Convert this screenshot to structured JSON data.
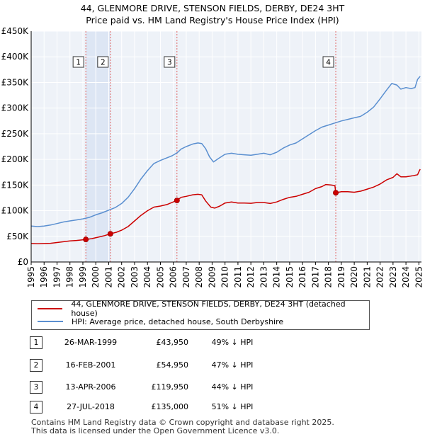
{
  "title_line1": "44, GLENMORE DRIVE, STENSON FIELDS, DERBY, DE24 3HT",
  "title_line2": "Price paid vs. HM Land Registry's House Price Index (HPI)",
  "chart_data": {
    "type": "line",
    "x_range": [
      1995,
      2025.2
    ],
    "ylim": [
      0,
      450000
    ],
    "y_ticks": [
      0,
      50000,
      100000,
      150000,
      200000,
      250000,
      300000,
      350000,
      400000,
      450000
    ],
    "y_tick_labels": [
      "£0",
      "£50K",
      "£100K",
      "£150K",
      "£200K",
      "£250K",
      "£300K",
      "£350K",
      "£400K",
      "£450K"
    ],
    "x_ticks": [
      1995,
      1996,
      1997,
      1998,
      1999,
      2000,
      2001,
      2002,
      2003,
      2004,
      2005,
      2006,
      2007,
      2008,
      2009,
      2010,
      2011,
      2012,
      2013,
      2014,
      2015,
      2016,
      2017,
      2018,
      2019,
      2020,
      2021,
      2022,
      2023,
      2024,
      2025
    ],
    "series": [
      {
        "name": "44, GLENMORE DRIVE, STENSON FIELDS, DERBY, DE24 3HT (detached house)",
        "color": "#cc0000",
        "points": [
          [
            1995.0,
            36000
          ],
          [
            1995.5,
            35500
          ],
          [
            1996.0,
            36000
          ],
          [
            1996.5,
            36500
          ],
          [
            1997.0,
            38000
          ],
          [
            1997.5,
            39500
          ],
          [
            1998.0,
            41000
          ],
          [
            1998.5,
            42000
          ],
          [
            1999.23,
            43950
          ],
          [
            1999.7,
            45500
          ],
          [
            2000.2,
            48500
          ],
          [
            2000.7,
            51500
          ],
          [
            2001.13,
            54950
          ],
          [
            2001.6,
            58000
          ],
          [
            2002.0,
            62000
          ],
          [
            2002.5,
            69000
          ],
          [
            2003.0,
            80000
          ],
          [
            2003.5,
            91000
          ],
          [
            2004.0,
            100000
          ],
          [
            2004.5,
            107000
          ],
          [
            2005.0,
            109000
          ],
          [
            2005.5,
            112000
          ],
          [
            2006.28,
            119950
          ],
          [
            2006.6,
            126000
          ],
          [
            2007.0,
            128000
          ],
          [
            2007.5,
            131000
          ],
          [
            2007.9,
            132000
          ],
          [
            2008.2,
            131000
          ],
          [
            2008.5,
            119000
          ],
          [
            2008.9,
            107000
          ],
          [
            2009.2,
            105000
          ],
          [
            2009.6,
            109000
          ],
          [
            2010.0,
            115000
          ],
          [
            2010.5,
            117000
          ],
          [
            2011.0,
            115000
          ],
          [
            2011.5,
            115000
          ],
          [
            2012.0,
            114500
          ],
          [
            2012.5,
            116000
          ],
          [
            2013.0,
            116000
          ],
          [
            2013.5,
            114000
          ],
          [
            2014.0,
            117000
          ],
          [
            2014.5,
            122000
          ],
          [
            2015.0,
            126000
          ],
          [
            2015.5,
            128000
          ],
          [
            2016.0,
            132000
          ],
          [
            2016.5,
            136000
          ],
          [
            2017.0,
            143000
          ],
          [
            2017.5,
            147000
          ],
          [
            2017.8,
            151000
          ],
          [
            2018.2,
            150000
          ],
          [
            2018.5,
            149000
          ],
          [
            2018.57,
            135000
          ],
          [
            2019.0,
            137000
          ],
          [
            2019.5,
            137000
          ],
          [
            2020.0,
            136000
          ],
          [
            2020.5,
            138000
          ],
          [
            2021.0,
            142000
          ],
          [
            2021.5,
            146000
          ],
          [
            2022.0,
            152000
          ],
          [
            2022.5,
            160000
          ],
          [
            2023.0,
            165000
          ],
          [
            2023.3,
            172000
          ],
          [
            2023.6,
            166000
          ],
          [
            2024.0,
            166000
          ],
          [
            2024.5,
            168000
          ],
          [
            2024.9,
            170000
          ],
          [
            2025.0,
            176000
          ],
          [
            2025.1,
            181000
          ]
        ]
      },
      {
        "name": "HPI: Average price, detached house, South Derbyshire",
        "color": "#5a8fd0",
        "points": [
          [
            1995.0,
            70000
          ],
          [
            1995.5,
            69000
          ],
          [
            1996.0,
            70000
          ],
          [
            1996.5,
            72000
          ],
          [
            1997.0,
            75000
          ],
          [
            1997.5,
            78000
          ],
          [
            1998.0,
            80000
          ],
          [
            1998.5,
            82000
          ],
          [
            1999.0,
            84000
          ],
          [
            1999.5,
            87000
          ],
          [
            2000.0,
            92000
          ],
          [
            2000.5,
            96000
          ],
          [
            2001.0,
            101000
          ],
          [
            2001.5,
            106000
          ],
          [
            2002.0,
            114000
          ],
          [
            2002.5,
            126000
          ],
          [
            2003.0,
            143000
          ],
          [
            2003.5,
            162000
          ],
          [
            2004.0,
            178000
          ],
          [
            2004.5,
            192000
          ],
          [
            2005.0,
            198000
          ],
          [
            2005.5,
            203000
          ],
          [
            2005.9,
            207000
          ],
          [
            2006.3,
            213000
          ],
          [
            2006.6,
            220000
          ],
          [
            2007.0,
            225000
          ],
          [
            2007.5,
            230000
          ],
          [
            2007.9,
            232000
          ],
          [
            2008.2,
            231000
          ],
          [
            2008.5,
            221000
          ],
          [
            2008.8,
            205000
          ],
          [
            2009.1,
            195000
          ],
          [
            2009.5,
            202000
          ],
          [
            2010.0,
            210000
          ],
          [
            2010.5,
            212000
          ],
          [
            2011.0,
            210000
          ],
          [
            2011.5,
            209000
          ],
          [
            2012.0,
            208000
          ],
          [
            2012.5,
            210000
          ],
          [
            2013.0,
            212000
          ],
          [
            2013.5,
            209000
          ],
          [
            2014.0,
            214000
          ],
          [
            2014.5,
            222000
          ],
          [
            2015.0,
            228000
          ],
          [
            2015.5,
            232000
          ],
          [
            2016.0,
            240000
          ],
          [
            2016.5,
            248000
          ],
          [
            2017.0,
            256000
          ],
          [
            2017.5,
            263000
          ],
          [
            2018.0,
            267000
          ],
          [
            2018.5,
            271000
          ],
          [
            2019.0,
            275000
          ],
          [
            2019.5,
            278000
          ],
          [
            2020.0,
            281000
          ],
          [
            2020.5,
            284000
          ],
          [
            2021.0,
            292000
          ],
          [
            2021.5,
            302000
          ],
          [
            2022.0,
            318000
          ],
          [
            2022.5,
            335000
          ],
          [
            2022.9,
            348000
          ],
          [
            2023.3,
            345000
          ],
          [
            2023.6,
            337000
          ],
          [
            2024.0,
            340000
          ],
          [
            2024.4,
            338000
          ],
          [
            2024.7,
            340000
          ],
          [
            2024.9,
            356000
          ],
          [
            2025.1,
            362000
          ]
        ]
      }
    ],
    "sales": [
      {
        "label": "1",
        "x": 1999.23,
        "price": 43950
      },
      {
        "label": "2",
        "x": 2001.13,
        "price": 54950
      },
      {
        "label": "3",
        "x": 2006.28,
        "price": 119950
      },
      {
        "label": "4",
        "x": 2018.57,
        "price": 135000
      }
    ],
    "shaded_ranges": [
      [
        1999.23,
        2001.13
      ]
    ]
  },
  "legend": {
    "property_label": "44, GLENMORE DRIVE, STENSON FIELDS, DERBY, DE24 3HT (detached house)",
    "hpi_label": "HPI: Average price, detached house, South Derbyshire",
    "property_color": "#cc0000",
    "hpi_color": "#5a8fd0"
  },
  "transactions": [
    {
      "num": "1",
      "date": "26-MAR-1999",
      "price": "£43,950",
      "hpi": "49% ↓ HPI"
    },
    {
      "num": "2",
      "date": "16-FEB-2001",
      "price": "£54,950",
      "hpi": "47% ↓ HPI"
    },
    {
      "num": "3",
      "date": "13-APR-2006",
      "price": "£119,950",
      "hpi": "44% ↓ HPI"
    },
    {
      "num": "4",
      "date": "27-JUL-2018",
      "price": "£135,000",
      "hpi": "51% ↓ HPI"
    }
  ],
  "footer_line1": "Contains HM Land Registry data © Crown copyright and database right 2025.",
  "footer_line2": "This data is licensed under the Open Government Licence v3.0."
}
